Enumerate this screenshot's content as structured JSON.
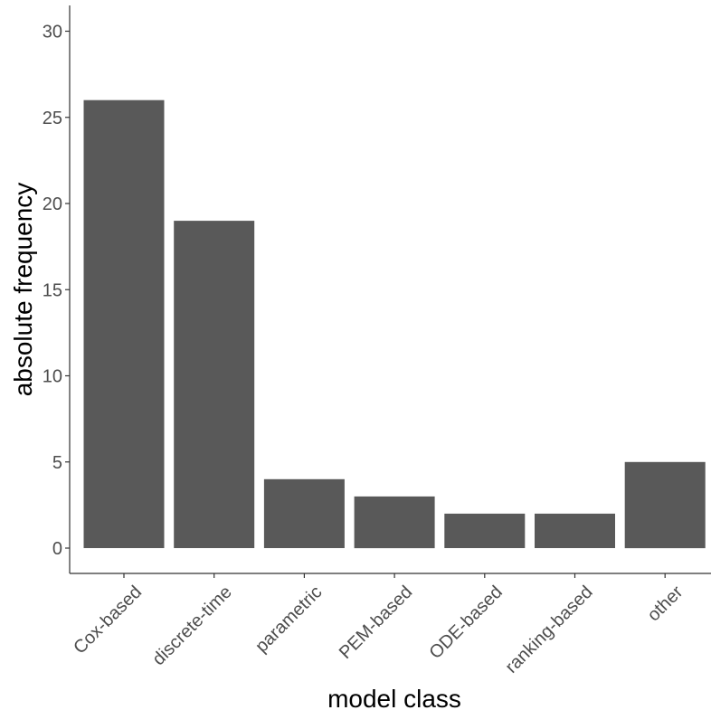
{
  "chart_data": {
    "type": "bar",
    "title": "",
    "xlabel": "model class",
    "ylabel": "absolute frequency",
    "categories": [
      "Cox-based",
      "discrete-time",
      "parametric",
      "PEM-based",
      "ODE-based",
      "ranking-based",
      "other"
    ],
    "values": [
      26,
      19,
      4,
      3,
      2,
      2,
      5
    ],
    "ylim": [
      0,
      30
    ],
    "yticks": [
      0,
      5,
      10,
      15,
      20,
      25,
      30
    ],
    "grid": false,
    "legend": "none",
    "colors": {
      "bar": "#595959",
      "axis": "#333333",
      "tick_text": "#4d4d4d",
      "title_text": "#000000"
    }
  }
}
